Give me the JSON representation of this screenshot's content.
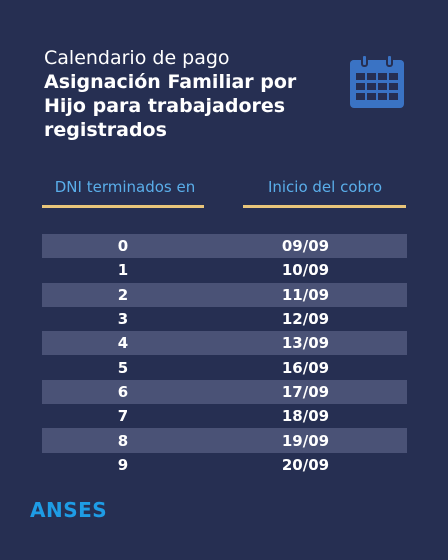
{
  "title": {
    "line1": "Calendario de pago",
    "line2": "Asignación Familiar por Hijo para trabajadores registrados"
  },
  "table": {
    "header_dni": "DNI terminados en",
    "header_date": "Inicio del cobro",
    "rows": [
      {
        "dni": "0",
        "date": "09/09"
      },
      {
        "dni": "1",
        "date": "10/09"
      },
      {
        "dni": "2",
        "date": "11/09"
      },
      {
        "dni": "3",
        "date": "12/09"
      },
      {
        "dni": "4",
        "date": "13/09"
      },
      {
        "dni": "5",
        "date": "16/09"
      },
      {
        "dni": "6",
        "date": "17/09"
      },
      {
        "dni": "7",
        "date": "18/09"
      },
      {
        "dni": "8",
        "date": "19/09"
      },
      {
        "dni": "9",
        "date": "20/09"
      }
    ]
  },
  "logo": "ANSES",
  "icons": {
    "calendar": "calendar-icon"
  },
  "colors": {
    "background": "#262f52",
    "accent_blue": "#5aaeea",
    "underline_gold": "#e8c57a",
    "row_shade": "#4a5276",
    "logo_blue": "#1e9ce5",
    "icon_blue": "#3a73c4"
  }
}
